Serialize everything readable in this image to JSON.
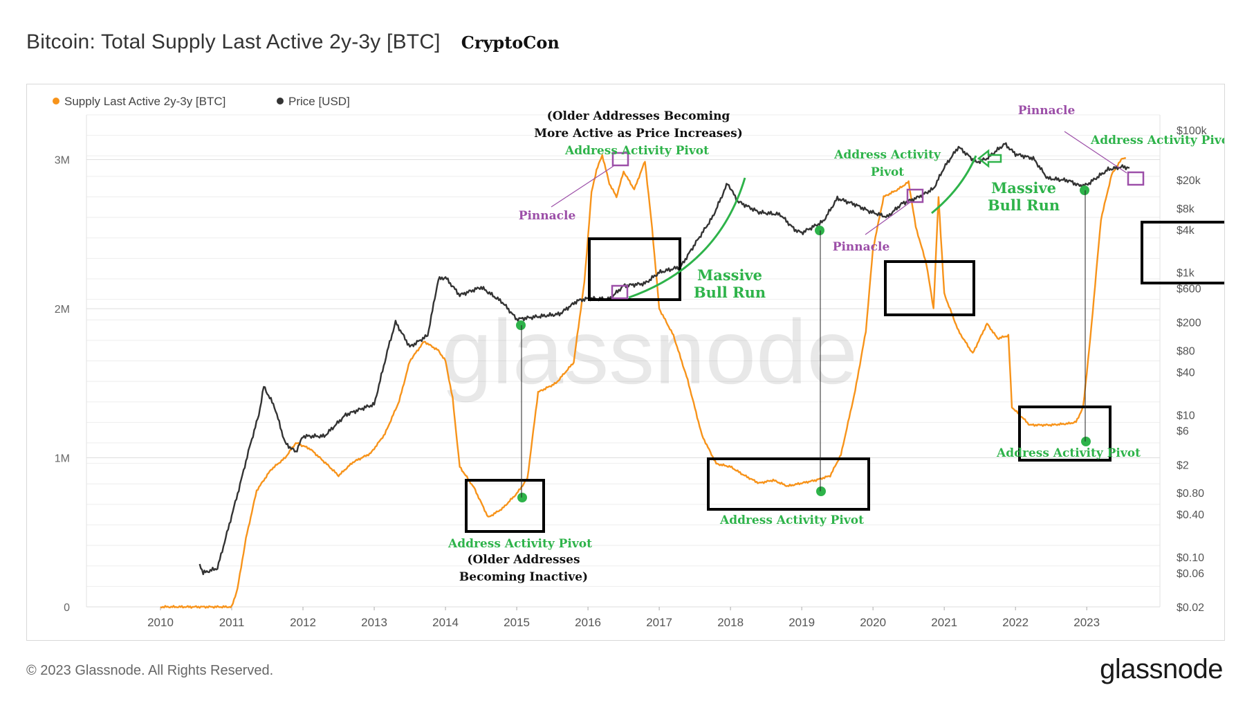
{
  "header": {
    "title": "Bitcoin: Total Supply Last Active 2y-3y [BTC]",
    "author": "CryptoCon"
  },
  "footer": {
    "copyright": "© 2023 Glassnode. All Rights Reserved.",
    "logo": "glassnode"
  },
  "watermark": "glassnode",
  "colors": {
    "supply": "#f7931a",
    "price": "#333333",
    "annotation_green": "#2eb34a",
    "annotation_purple": "#9c4fa8",
    "box": "#000000"
  },
  "chart_data": {
    "type": "line",
    "legend_position": "top-left",
    "grid": true,
    "series": [
      {
        "name": "Supply Last Active 2y-3y [BTC]",
        "axis": "left",
        "color": "#f7931a",
        "points": [
          [
            2010.0,
            0
          ],
          [
            2011.0,
            0
          ],
          [
            2011.08,
            120000
          ],
          [
            2011.2,
            460000
          ],
          [
            2011.35,
            780000
          ],
          [
            2011.55,
            920000
          ],
          [
            2011.75,
            1000000
          ],
          [
            2011.9,
            1100000
          ],
          [
            2012.1,
            1060000
          ],
          [
            2012.35,
            950000
          ],
          [
            2012.5,
            880000
          ],
          [
            2012.7,
            970000
          ],
          [
            2012.95,
            1030000
          ],
          [
            2013.15,
            1160000
          ],
          [
            2013.35,
            1380000
          ],
          [
            2013.5,
            1650000
          ],
          [
            2013.7,
            1780000
          ],
          [
            2013.9,
            1720000
          ],
          [
            2014.0,
            1650000
          ],
          [
            2014.1,
            1400000
          ],
          [
            2014.2,
            940000
          ],
          [
            2014.4,
            800000
          ],
          [
            2014.6,
            600000
          ],
          [
            2014.8,
            660000
          ],
          [
            2015.0,
            760000
          ],
          [
            2015.15,
            860000
          ],
          [
            2015.3,
            1440000
          ],
          [
            2015.55,
            1500000
          ],
          [
            2015.8,
            1640000
          ],
          [
            2015.95,
            2180000
          ],
          [
            2016.05,
            2780000
          ],
          [
            2016.12,
            2930000
          ],
          [
            2016.2,
            3030000
          ],
          [
            2016.3,
            2840000
          ],
          [
            2016.4,
            2750000
          ],
          [
            2016.5,
            2920000
          ],
          [
            2016.65,
            2800000
          ],
          [
            2016.8,
            2990000
          ],
          [
            2016.9,
            2540000
          ],
          [
            2017.0,
            2000000
          ],
          [
            2017.2,
            1820000
          ],
          [
            2017.4,
            1520000
          ],
          [
            2017.6,
            1150000
          ],
          [
            2017.8,
            960000
          ],
          [
            2018.0,
            940000
          ],
          [
            2018.2,
            880000
          ],
          [
            2018.4,
            830000
          ],
          [
            2018.6,
            850000
          ],
          [
            2018.8,
            810000
          ],
          [
            2019.0,
            830000
          ],
          [
            2019.2,
            850000
          ],
          [
            2019.4,
            880000
          ],
          [
            2019.55,
            1020000
          ],
          [
            2019.75,
            1450000
          ],
          [
            2019.9,
            1850000
          ],
          [
            2020.0,
            2400000
          ],
          [
            2020.15,
            2750000
          ],
          [
            2020.35,
            2800000
          ],
          [
            2020.5,
            2850000
          ],
          [
            2020.6,
            2550000
          ],
          [
            2020.75,
            2300000
          ],
          [
            2020.85,
            2000000
          ],
          [
            2020.92,
            2750000
          ],
          [
            2021.0,
            2100000
          ],
          [
            2021.2,
            1850000
          ],
          [
            2021.4,
            1700000
          ],
          [
            2021.6,
            1900000
          ],
          [
            2021.75,
            1800000
          ],
          [
            2021.9,
            1820000
          ],
          [
            2021.95,
            1340000
          ],
          [
            2022.2,
            1220000
          ],
          [
            2022.5,
            1220000
          ],
          [
            2022.75,
            1230000
          ],
          [
            2022.85,
            1240000
          ],
          [
            2022.95,
            1340000
          ],
          [
            2023.05,
            1800000
          ],
          [
            2023.2,
            2600000
          ],
          [
            2023.35,
            2900000
          ],
          [
            2023.5,
            3010000
          ],
          [
            2023.55,
            3010000
          ]
        ]
      },
      {
        "name": "Price [USD]",
        "axis": "right",
        "scale": "log",
        "color": "#333333",
        "points": [
          [
            2010.55,
            0.08
          ],
          [
            2010.6,
            0.06
          ],
          [
            2010.8,
            0.07
          ],
          [
            2010.95,
            0.25
          ],
          [
            2011.1,
            0.9
          ],
          [
            2011.25,
            3.5
          ],
          [
            2011.38,
            10
          ],
          [
            2011.45,
            25
          ],
          [
            2011.6,
            13
          ],
          [
            2011.75,
            4
          ],
          [
            2011.9,
            3
          ],
          [
            2012.0,
            5
          ],
          [
            2012.3,
            5
          ],
          [
            2012.6,
            10
          ],
          [
            2012.9,
            13
          ],
          [
            2013.0,
            14
          ],
          [
            2013.2,
            90
          ],
          [
            2013.3,
            200
          ],
          [
            2013.5,
            90
          ],
          [
            2013.75,
            130
          ],
          [
            2013.9,
            800
          ],
          [
            2014.0,
            850
          ],
          [
            2014.2,
            480
          ],
          [
            2014.5,
            620
          ],
          [
            2014.8,
            380
          ],
          [
            2015.0,
            220
          ],
          [
            2015.3,
            240
          ],
          [
            2015.6,
            260
          ],
          [
            2015.85,
            400
          ],
          [
            2016.0,
            430
          ],
          [
            2016.3,
            420
          ],
          [
            2016.5,
            650
          ],
          [
            2016.8,
            700
          ],
          [
            2017.0,
            1000
          ],
          [
            2017.3,
            1200
          ],
          [
            2017.5,
            2500
          ],
          [
            2017.75,
            6000
          ],
          [
            2017.96,
            18000
          ],
          [
            2018.1,
            10000
          ],
          [
            2018.4,
            7000
          ],
          [
            2018.7,
            6500
          ],
          [
            2018.9,
            4000
          ],
          [
            2019.0,
            3600
          ],
          [
            2019.3,
            5200
          ],
          [
            2019.5,
            11000
          ],
          [
            2019.75,
            9000
          ],
          [
            2019.95,
            7200
          ],
          [
            2020.2,
            6000
          ],
          [
            2020.4,
            9200
          ],
          [
            2020.6,
            11000
          ],
          [
            2020.85,
            15000
          ],
          [
            2021.0,
            30000
          ],
          [
            2021.2,
            58000
          ],
          [
            2021.45,
            35000
          ],
          [
            2021.6,
            40000
          ],
          [
            2021.85,
            64000
          ],
          [
            2022.0,
            46000
          ],
          [
            2022.25,
            40000
          ],
          [
            2022.45,
            21000
          ],
          [
            2022.75,
            19500
          ],
          [
            2022.9,
            16500
          ],
          [
            2023.0,
            17000
          ],
          [
            2023.3,
            28000
          ],
          [
            2023.5,
            30500
          ],
          [
            2023.6,
            29500
          ]
        ]
      }
    ],
    "x_ticks": [
      "2010",
      "2011",
      "2012",
      "2013",
      "2014",
      "2015",
      "2016",
      "2017",
      "2018",
      "2019",
      "2020",
      "2021",
      "2022",
      "2023"
    ],
    "y_left_ticks": [
      {
        "label": "0",
        "value": 0
      },
      {
        "label": "1M",
        "value": 1000000
      },
      {
        "label": "2M",
        "value": 2000000
      },
      {
        "label": "3M",
        "value": 3000000
      }
    ],
    "y_right_ticks": [
      {
        "label": "$0.02",
        "value": 0.02
      },
      {
        "label": "$0.06",
        "value": 0.06
      },
      {
        "label": "$0.10",
        "value": 0.1
      },
      {
        "label": "$0.40",
        "value": 0.4
      },
      {
        "label": "$0.80",
        "value": 0.8
      },
      {
        "label": "$2",
        "value": 2
      },
      {
        "label": "$6",
        "value": 6
      },
      {
        "label": "$10",
        "value": 10
      },
      {
        "label": "$40",
        "value": 40
      },
      {
        "label": "$80",
        "value": 80
      },
      {
        "label": "$200",
        "value": 200
      },
      {
        "label": "$600",
        "value": 600
      },
      {
        "label": "$1k",
        "value": 1000
      },
      {
        "label": "$4k",
        "value": 4000
      },
      {
        "label": "$8k",
        "value": 8000
      },
      {
        "label": "$20k",
        "value": 20000
      },
      {
        "label": "$100k",
        "value": 100000
      }
    ],
    "annotations": [
      {
        "id": "older-addresses-active",
        "kind": "note",
        "lines": [
          "(Older Addresses Becoming",
          "More Active as Price Increases)"
        ]
      },
      {
        "id": "pivot-2016-top",
        "kind": "pivot-label",
        "text": "Address Activity Pivot"
      },
      {
        "id": "pinnacle-2016",
        "kind": "pinnacle-label",
        "text": "Pinnacle"
      },
      {
        "id": "bull-run-2017",
        "kind": "bull-label",
        "lines": [
          "Massive",
          "Bull Run"
        ]
      },
      {
        "id": "pivot-2015-bottom",
        "kind": "pivot-label",
        "text": "Address Activity Pivot"
      },
      {
        "id": "older-addresses-inactive",
        "kind": "note",
        "lines": [
          "(Older Addresses",
          "Becoming Inactive)"
        ]
      },
      {
        "id": "pivot-2019-bottom",
        "kind": "pivot-label",
        "text": "Address Activity Pivot"
      },
      {
        "id": "pivot-2020-top",
        "kind": "pivot-label",
        "lines": [
          "Address Activity",
          "Pivot"
        ]
      },
      {
        "id": "pinnacle-2020",
        "kind": "pinnacle-label",
        "text": "Pinnacle"
      },
      {
        "id": "bull-run-2021",
        "kind": "bull-label",
        "lines": [
          "Massive",
          "Bull Run"
        ]
      },
      {
        "id": "pinnacle-2023",
        "kind": "pinnacle-label",
        "text": "Pinnacle"
      },
      {
        "id": "pivot-2023-top",
        "kind": "pivot-label",
        "text": "Address Activity Pivot"
      },
      {
        "id": "pivot-2022-bottom",
        "kind": "pivot-label",
        "text": "Address Activity Pivot"
      }
    ]
  }
}
